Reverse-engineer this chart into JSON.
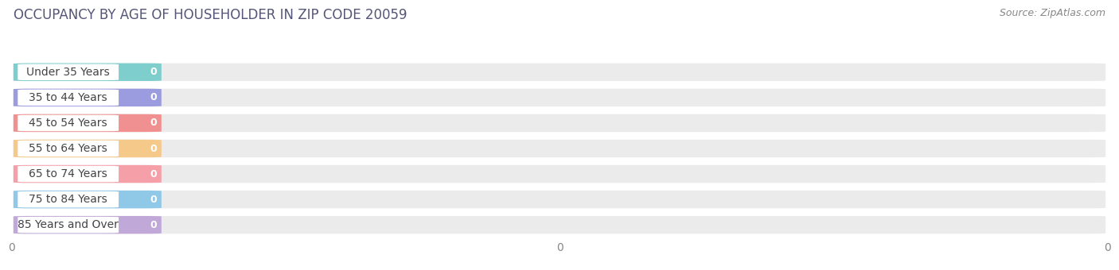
{
  "title": "OCCUPANCY BY AGE OF HOUSEHOLDER IN ZIP CODE 20059",
  "source": "Source: ZipAtlas.com",
  "categories": [
    "Under 35 Years",
    "35 to 44 Years",
    "45 to 54 Years",
    "55 to 64 Years",
    "65 to 74 Years",
    "75 to 84 Years",
    "85 Years and Over"
  ],
  "values": [
    0,
    0,
    0,
    0,
    0,
    0,
    0
  ],
  "bar_colors": [
    "#7ecece",
    "#9b9be0",
    "#f09090",
    "#f5c98a",
    "#f5a0a8",
    "#90c8e8",
    "#c0a8d8"
  ],
  "bar_bg_color": "#ebebeb",
  "label_bg_color": "#ffffff",
  "title_fontsize": 12,
  "source_fontsize": 9,
  "tick_fontsize": 10,
  "label_fontsize": 10,
  "value_fontsize": 9,
  "fig_bg_color": "#ffffff",
  "grid_color": "#ffffff"
}
